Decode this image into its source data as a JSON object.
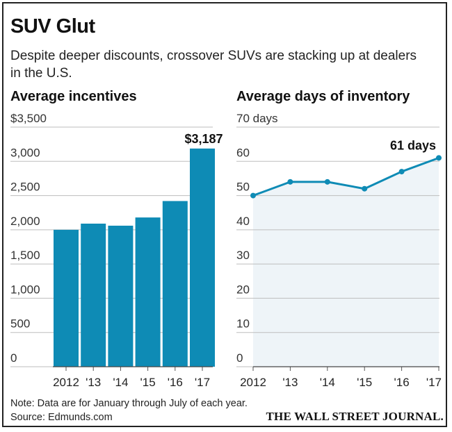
{
  "title": "SUV Glut",
  "subtitle": "Despite deeper discounts, crossover SUVs are stacking up at dealers in the U.S.",
  "note": "Note: Data are for January through July of each year.",
  "source": "Source: Edmunds.com",
  "brand": "THE WALL STREET JOURNAL.",
  "colors": {
    "bar": "#0e8bb5",
    "line": "#0e8bb5",
    "area": "#eef4f8",
    "grid": "#bdbdbd"
  },
  "chart_data": [
    {
      "type": "bar",
      "title": "Average incentives",
      "unit_label": "$3,500",
      "categories": [
        "2012",
        "'13",
        "'14",
        "'15",
        "'16",
        "'17"
      ],
      "values": [
        2000,
        2090,
        2060,
        2180,
        2420,
        3187
      ],
      "ylim": [
        0,
        3500
      ],
      "yticks": [
        0,
        500,
        1000,
        1500,
        2000,
        2500,
        3000
      ],
      "ytick_labels": [
        "0",
        "500",
        "1,000",
        "1,500",
        "2,000",
        "2,500",
        "3,000"
      ],
      "callout": "$3,187",
      "grid": true
    },
    {
      "type": "area",
      "title": "Average days of inventory",
      "unit_label": "70 days",
      "categories": [
        "2012",
        "'13",
        "'14",
        "'15",
        "'16",
        "'17"
      ],
      "values": [
        50,
        54,
        54,
        52,
        57,
        61
      ],
      "ylim": [
        0,
        70
      ],
      "yticks": [
        0,
        10,
        20,
        30,
        40,
        50,
        60
      ],
      "ytick_labels": [
        "0",
        "10",
        "20",
        "30",
        "40",
        "50",
        "60"
      ],
      "callout": "61 days",
      "grid": true
    }
  ]
}
